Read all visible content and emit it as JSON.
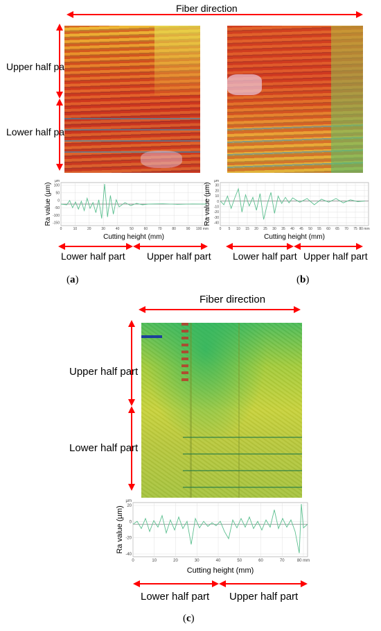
{
  "top": {
    "fiber_direction": "Fiber direction",
    "a": {
      "upper_label": "Upper half part",
      "lower_label": "Lower half part",
      "ylabel": "Ra value (µm)",
      "xlabel": "Cutting height (mm)",
      "y_unit": "µm",
      "x_unit": "mm",
      "bottom_left": "Lower half part",
      "bottom_right": "Upper half part",
      "caption_open": "(",
      "caption_letter": "a",
      "caption_close": ")"
    },
    "b": {
      "ylabel": "Ra value (µm)",
      "xlabel": "Cutting height (mm)",
      "y_unit": "µm",
      "x_unit": "mm",
      "bottom_left": "Lower half part",
      "bottom_right": "Upper half part",
      "caption_open": "(",
      "caption_letter": "b",
      "caption_close": ")"
    }
  },
  "c": {
    "fiber_direction": "Fiber direction",
    "upper_label": "Upper half part",
    "lower_label": "Lower half part",
    "ylabel": "Ra value (µm)",
    "xlabel": "Cutting height (mm)",
    "y_unit": "µm",
    "x_unit": "mm",
    "bottom_left": "Lower half part",
    "bottom_right": "Upper half part",
    "caption_open": "(",
    "caption_letter": "c",
    "caption_close": ")"
  },
  "colors": {
    "arrow": "#ff0000",
    "trace": "#5bbf8f",
    "grid": "#d9d9d9"
  },
  "chart_data": [
    {
      "id": "a",
      "type": "line",
      "xlabel": "Cutting height (mm)",
      "ylabel": "Ra value (µm)",
      "x_ticks": [
        "0",
        "10",
        "20",
        "30",
        "40",
        "50",
        "60",
        "70",
        "80",
        "90",
        "100 mm"
      ],
      "y_ticks": [
        "100",
        "50",
        "0",
        "-50",
        "-100",
        "-150"
      ],
      "xlim": [
        0,
        100
      ],
      "ylim": [
        -150,
        150
      ],
      "x": [
        0,
        4,
        6,
        8,
        10,
        12,
        14,
        16,
        18,
        20,
        22,
        24,
        26,
        28,
        30,
        32,
        34,
        36,
        38,
        40,
        44,
        48,
        52,
        56,
        60,
        70,
        80,
        90,
        100
      ],
      "y": [
        0,
        -5,
        25,
        -25,
        15,
        -35,
        20,
        -45,
        40,
        -30,
        10,
        -60,
        30,
        -100,
        140,
        -90,
        60,
        -70,
        30,
        -20,
        10,
        -10,
        5,
        -5,
        0,
        2,
        -2,
        1,
        0
      ]
    },
    {
      "id": "b",
      "type": "line",
      "xlabel": "Cutting height (mm)",
      "ylabel": "Ra value (µm)",
      "x_ticks": [
        "0",
        "5",
        "10",
        "15",
        "20",
        "25",
        "30",
        "35",
        "40",
        "45",
        "50",
        "55",
        "60",
        "65",
        "70",
        "75",
        "80 mm"
      ],
      "y_ticks": [
        "30",
        "20",
        "10",
        "0",
        "-10",
        "-20",
        "-30",
        "-40"
      ],
      "xlim": [
        0,
        82
      ],
      "ylim": [
        -40,
        30
      ],
      "x": [
        0,
        2,
        4,
        6,
        8,
        10,
        12,
        14,
        16,
        18,
        20,
        22,
        24,
        26,
        28,
        30,
        32,
        34,
        36,
        38,
        40,
        44,
        48,
        52,
        56,
        60,
        64,
        68,
        72,
        76,
        80
      ],
      "y": [
        0,
        -6,
        8,
        -12,
        5,
        20,
        -18,
        10,
        -8,
        6,
        -15,
        12,
        -30,
        -5,
        14,
        -20,
        8,
        -4,
        6,
        -3,
        5,
        -2,
        4,
        -6,
        3,
        -2,
        4,
        -3,
        2,
        -1,
        0
      ]
    },
    {
      "id": "c",
      "type": "line",
      "xlabel": "Cutting height (mm)",
      "ylabel": "Ra value (µm)",
      "x_ticks": [
        "0",
        "10",
        "20",
        "30",
        "40",
        "50",
        "60",
        "70",
        "80 mm"
      ],
      "y_ticks": [
        "20",
        "0",
        "-20",
        "-40"
      ],
      "xlim": [
        0,
        84
      ],
      "ylim": [
        -45,
        30
      ],
      "x": [
        0,
        2,
        4,
        6,
        8,
        10,
        12,
        14,
        16,
        18,
        20,
        22,
        24,
        26,
        28,
        30,
        32,
        34,
        36,
        38,
        40,
        42,
        44,
        46,
        48,
        50,
        52,
        54,
        56,
        58,
        60,
        62,
        64,
        66,
        68,
        70,
        72,
        74,
        76,
        78,
        80,
        81,
        82,
        84
      ],
      "y": [
        0,
        4,
        -6,
        8,
        -10,
        5,
        -4,
        12,
        -12,
        6,
        -8,
        10,
        -6,
        4,
        -28,
        8,
        -5,
        4,
        -3,
        2,
        -2,
        4,
        -10,
        -20,
        6,
        -5,
        8,
        -4,
        10,
        -6,
        4,
        -8,
        6,
        -4,
        20,
        -6,
        8,
        -4,
        6,
        -10,
        -40,
        28,
        -5,
        0
      ]
    }
  ]
}
